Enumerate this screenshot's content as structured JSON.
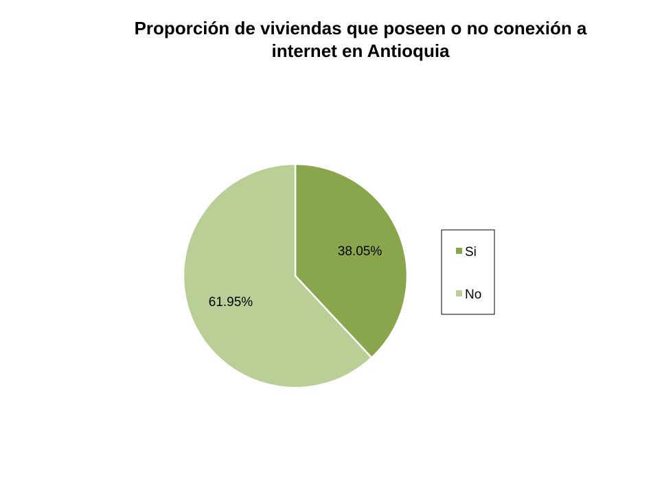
{
  "chart_data": {
    "type": "pie",
    "title_lines": [
      "Proporción de viviendas que poseen o no conexión a",
      "internet en Antioquia"
    ],
    "categories": [
      "Si",
      "No"
    ],
    "values": [
      38.05,
      61.95
    ],
    "data_labels": [
      "38.05%",
      "61.95%"
    ],
    "colors": [
      "#8aa64d",
      "#b9cf95"
    ],
    "start_angle_deg": 0,
    "direction": "clockwise",
    "legend": {
      "position": "right",
      "entries": [
        "Si",
        "No"
      ]
    }
  }
}
